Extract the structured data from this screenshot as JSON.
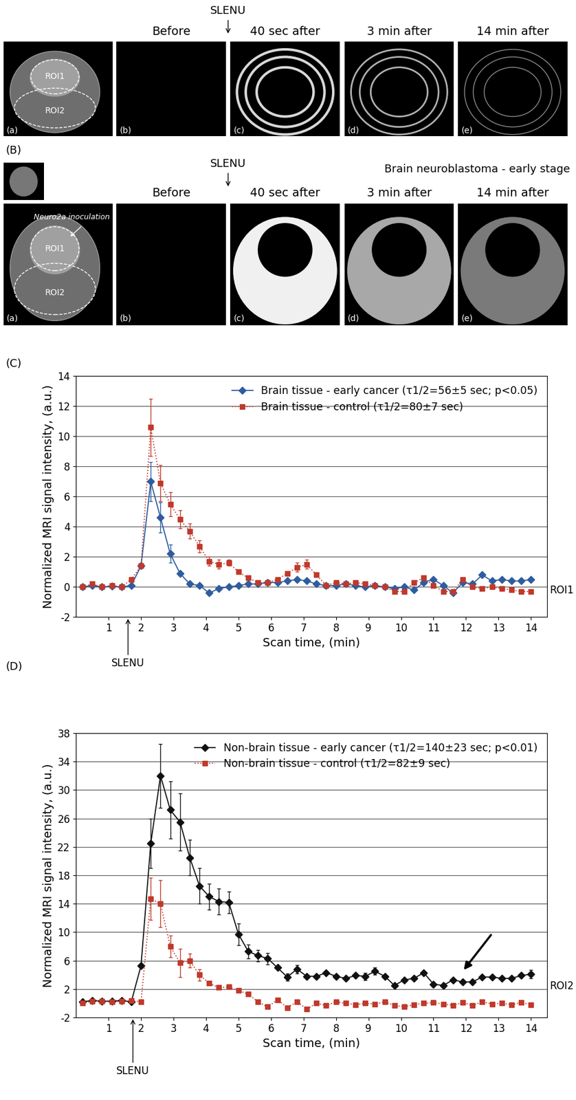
{
  "panels": {
    "panel_letters": [
      "(a)",
      "(b)",
      "(c)",
      "(d)",
      "(e)"
    ],
    "rows": [
      {
        "injection": "SLENU",
        "columns": [
          "Before",
          "40 sec after",
          "3 min after",
          "14 min after"
        ],
        "roi_labels": [
          "ROI1",
          "ROI2"
        ]
      },
      {
        "label": "(B)",
        "title": "Brain neuroblastoma - early stage",
        "inset_label": "Neuro2a inoculation",
        "injection": "SLENU",
        "columns": [
          "Before",
          "40 sec after",
          "3 min after",
          "14 min after"
        ],
        "roi_labels": [
          "ROI1",
          "ROI2"
        ]
      }
    ]
  },
  "chart_data": [
    {
      "type": "line",
      "panel_label": "(C)",
      "x_label": "Scan time, (min)",
      "y_label": "Normalized MRI signal intensity, (a.u.)",
      "xlim": [
        0,
        14.5
      ],
      "xticks": [
        1,
        2,
        3,
        4,
        5,
        6,
        7,
        8,
        9,
        10,
        11,
        12,
        13,
        14
      ],
      "ylim": [
        -2,
        14
      ],
      "yticks": [
        -2,
        0,
        2,
        4,
        6,
        8,
        10,
        12,
        14
      ],
      "grid": true,
      "legend": "upper right",
      "roi_label": "ROI1",
      "annotations": [
        {
          "text": "SLENU",
          "x": 1.6
        }
      ],
      "x": [
        0.2,
        0.5,
        0.8,
        1.1,
        1.4,
        1.7,
        2.0,
        2.3,
        2.6,
        2.9,
        3.2,
        3.5,
        3.8,
        4.1,
        4.4,
        4.7,
        5.0,
        5.3,
        5.6,
        5.9,
        6.2,
        6.5,
        6.8,
        7.1,
        7.4,
        7.7,
        8.0,
        8.3,
        8.6,
        8.9,
        9.2,
        9.5,
        9.8,
        10.1,
        10.4,
        10.7,
        11.0,
        11.3,
        11.6,
        11.9,
        12.2,
        12.5,
        12.8,
        13.1,
        13.4,
        13.7,
        14.0
      ],
      "series": [
        {
          "name": "Brain tissue - early cancer (τ1/2=56±5 sec; p<0.05)",
          "color": "#2e5c9e",
          "marker": "diamond",
          "line_style": "solid",
          "values": [
            0,
            0.1,
            0,
            0.05,
            0,
            0.1,
            1.4,
            7.0,
            4.6,
            2.2,
            0.9,
            0.2,
            0.1,
            -0.4,
            -0.1,
            0.0,
            0.1,
            0.2,
            0.2,
            0.3,
            0.3,
            0.4,
            0.5,
            0.4,
            0.2,
            0.1,
            0.1,
            0.2,
            0.1,
            0.0,
            0.1,
            0.0,
            -0.1,
            0.0,
            -0.2,
            0.3,
            0.5,
            0.1,
            -0.4,
            0.3,
            0.2,
            0.8,
            0.4,
            0.5,
            0.4,
            0.4,
            0.5
          ],
          "errors": [
            null,
            null,
            null,
            null,
            null,
            null,
            null,
            1.3,
            1.0,
            0.6,
            null,
            null,
            null,
            null,
            null,
            null,
            null,
            null,
            null,
            null,
            null,
            null,
            null,
            null,
            null,
            null,
            null,
            null,
            null,
            null,
            null,
            null,
            null,
            null,
            null,
            null,
            null,
            null,
            null,
            null,
            null,
            null,
            null,
            null,
            null,
            null,
            null
          ]
        },
        {
          "name": "Brain tissue - control (τ1/2=80±7 sec)",
          "color": "#c0392b",
          "marker": "square",
          "line_style": "dotted",
          "values": [
            0.0,
            0.2,
            0.0,
            0.1,
            0.0,
            0.5,
            1.4,
            10.6,
            6.9,
            5.5,
            4.5,
            3.7,
            2.7,
            1.7,
            1.5,
            1.6,
            1.0,
            0.6,
            0.3,
            0.3,
            0.5,
            0.9,
            1.3,
            1.5,
            0.8,
            0.1,
            0.3,
            0.2,
            0.3,
            0.2,
            0.1,
            0.0,
            -0.3,
            -0.3,
            0.3,
            0.6,
            0.1,
            -0.3,
            -0.3,
            0.5,
            0.0,
            -0.1,
            0.0,
            -0.1,
            -0.2,
            -0.3,
            -0.3
          ],
          "errors": [
            null,
            null,
            null,
            null,
            null,
            null,
            null,
            1.9,
            1.2,
            0.8,
            0.6,
            0.5,
            0.4,
            0.3,
            0.3,
            0.2,
            null,
            null,
            null,
            null,
            null,
            null,
            0.3,
            0.3,
            null,
            null,
            null,
            null,
            null,
            null,
            null,
            null,
            null,
            null,
            null,
            null,
            null,
            null,
            null,
            null,
            null,
            null,
            null,
            null,
            null,
            null,
            null
          ]
        }
      ]
    },
    {
      "type": "line",
      "panel_label": "(D)",
      "x_label": "Scan time, (min)",
      "y_label": "Normalized MRI signal intensity, (a.u.)",
      "xlim": [
        0,
        14.5
      ],
      "xticks": [
        1,
        2,
        3,
        4,
        5,
        6,
        7,
        8,
        9,
        10,
        11,
        12,
        13,
        14
      ],
      "ylim": [
        -2,
        38
      ],
      "yticks": [
        -2,
        2,
        6,
        10,
        14,
        18,
        22,
        26,
        30,
        34,
        38
      ],
      "grid": true,
      "legend": "upper right",
      "roi_label": "ROI2",
      "annotations": [
        {
          "text": "SLENU",
          "x": 1.75
        }
      ],
      "arrow_at": {
        "x": 11.9,
        "y": 4.5
      },
      "x": [
        0.2,
        0.5,
        0.8,
        1.1,
        1.4,
        1.7,
        2.0,
        2.3,
        2.6,
        2.9,
        3.2,
        3.5,
        3.8,
        4.1,
        4.4,
        4.7,
        5.0,
        5.3,
        5.6,
        5.9,
        6.2,
        6.5,
        6.8,
        7.1,
        7.4,
        7.7,
        8.0,
        8.3,
        8.6,
        8.9,
        9.2,
        9.5,
        9.8,
        10.1,
        10.4,
        10.7,
        11.0,
        11.3,
        11.6,
        11.9,
        12.2,
        12.5,
        12.8,
        13.1,
        13.4,
        13.7,
        14.0
      ],
      "series": [
        {
          "name": "Non-brain tissue - early cancer (τ1/2=140±23 sec; p<0.01)",
          "color": "#111111",
          "marker": "diamond",
          "line_style": "solid",
          "values": [
            0.2,
            0.4,
            0.3,
            0.3,
            0.4,
            0.2,
            5.3,
            22.5,
            32.0,
            27.2,
            25.5,
            20.5,
            16.5,
            15.0,
            14.3,
            14.2,
            9.7,
            7.3,
            6.7,
            6.3,
            5.0,
            3.7,
            4.8,
            3.8,
            3.8,
            4.3,
            3.8,
            3.5,
            3.9,
            3.8,
            4.5,
            3.8,
            2.5,
            3.3,
            3.5,
            4.3,
            2.7,
            2.5,
            3.3,
            3.0,
            3.0,
            3.7,
            3.7,
            3.5,
            3.5,
            3.9,
            4.1
          ],
          "errors": [
            null,
            null,
            null,
            null,
            null,
            null,
            null,
            3.5,
            4.5,
            4.0,
            4.0,
            2.5,
            2.5,
            1.8,
            1.8,
            1.5,
            1.5,
            1.0,
            0.8,
            0.8,
            null,
            0.5,
            0.6,
            null,
            null,
            null,
            null,
            null,
            null,
            0.5,
            0.5,
            null,
            null,
            null,
            null,
            null,
            null,
            null,
            null,
            null,
            null,
            null,
            null,
            null,
            null,
            null,
            0.6
          ]
        },
        {
          "name": "Non-brain tissue - control (τ1/2=82±9 sec)",
          "color": "#c0392b",
          "marker": "square",
          "line_style": "dotted",
          "values": [
            0.0,
            0.3,
            0.3,
            0.2,
            0.3,
            0.4,
            0.2,
            14.7,
            14.0,
            8.0,
            5.7,
            6.0,
            4.0,
            2.8,
            2.2,
            2.3,
            1.8,
            1.3,
            0.2,
            -0.5,
            0.5,
            -0.6,
            0.2,
            -0.8,
            0.0,
            -0.3,
            0.2,
            0.0,
            -0.2,
            0.0,
            -0.1,
            0.2,
            -0.3,
            -0.5,
            -0.2,
            0.0,
            0.1,
            -0.1,
            -0.3,
            0.1,
            -0.3,
            0.2,
            -0.1,
            0.0,
            -0.2,
            0.1,
            -0.2
          ],
          "errors": [
            null,
            null,
            null,
            null,
            null,
            null,
            null,
            3.0,
            3.3,
            1.5,
            2.0,
            1.0,
            0.8,
            null,
            null,
            null,
            null,
            null,
            null,
            null,
            null,
            null,
            null,
            null,
            null,
            null,
            null,
            null,
            null,
            null,
            null,
            null,
            null,
            null,
            null,
            null,
            null,
            null,
            null,
            null,
            null,
            null,
            null,
            null,
            null,
            null,
            null
          ]
        }
      ]
    }
  ]
}
